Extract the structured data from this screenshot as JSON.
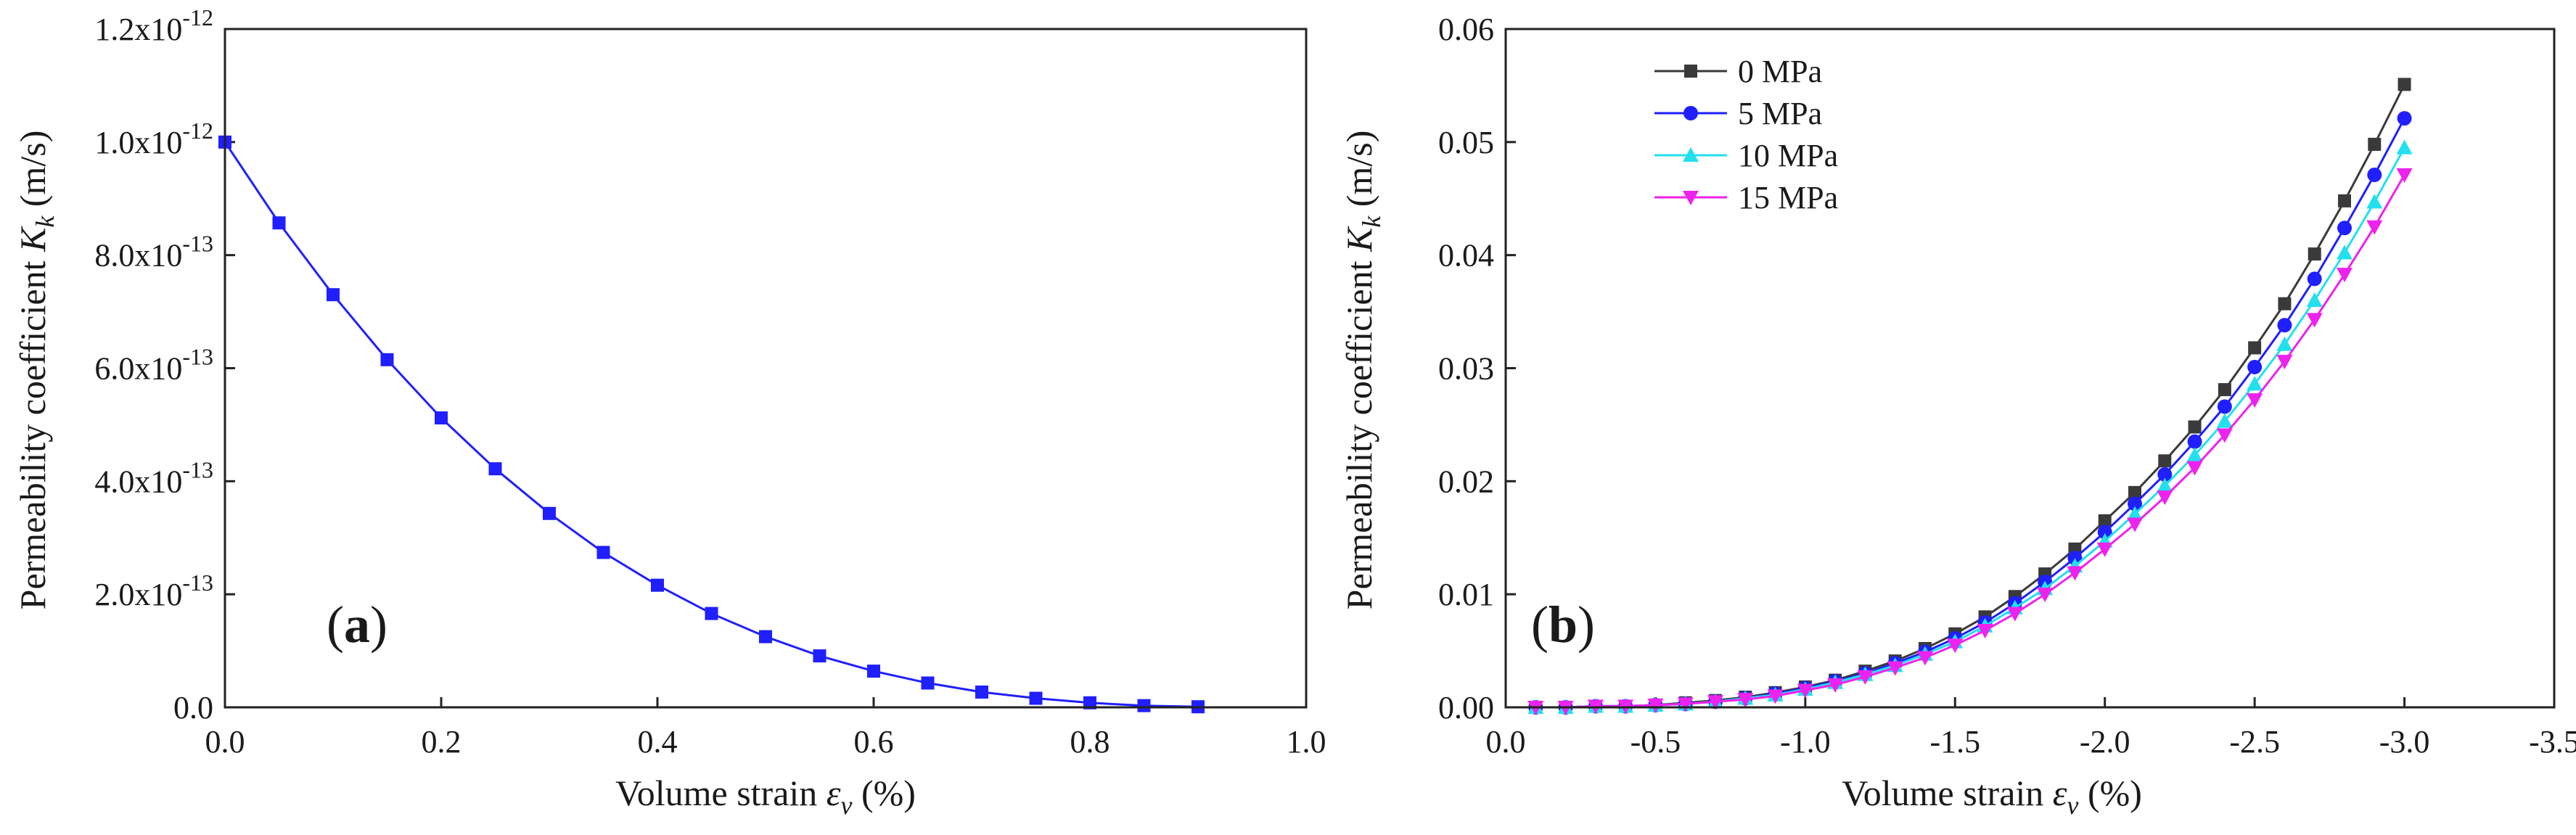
{
  "chart_data": [
    {
      "id": "a",
      "type": "line",
      "panel_label": "a",
      "xlabel": "Volume strain",
      "xsymbol": "ε",
      "xsubscript": "v",
      "xunit": "(%)",
      "ylabel": "Permeability coefficient",
      "ysymbol": "K",
      "ysubscript": "k",
      "yunit": "(m/s)",
      "xlim": [
        0.0,
        1.0
      ],
      "ylim": [
        0.0,
        1.2e-12
      ],
      "xticks": [
        {
          "value": 0.0,
          "label": "0.0"
        },
        {
          "value": 0.2,
          "label": "0.2"
        },
        {
          "value": 0.4,
          "label": "0.4"
        },
        {
          "value": 0.6,
          "label": "0.6"
        },
        {
          "value": 0.8,
          "label": "0.8"
        },
        {
          "value": 1.0,
          "label": "1.0"
        }
      ],
      "yticks": [
        {
          "value": 0.0,
          "label": "0.0"
        },
        {
          "value": 2e-13,
          "mant": "2.0x10",
          "exp": "-13"
        },
        {
          "value": 4e-13,
          "mant": "4.0x10",
          "exp": "-13"
        },
        {
          "value": 6e-13,
          "mant": "6.0x10",
          "exp": "-13"
        },
        {
          "value": 8e-13,
          "mant": "8.0x10",
          "exp": "-13"
        },
        {
          "value": 1e-12,
          "mant": "1.0x10",
          "exp": "-12"
        },
        {
          "value": 1.2e-12,
          "mant": "1.2x10",
          "exp": "-12"
        }
      ],
      "series": [
        {
          "name": "Kk",
          "color": "#1f1fff",
          "marker": "square",
          "x": [
            0.0,
            0.05,
            0.1,
            0.15,
            0.2,
            0.25,
            0.3,
            0.35,
            0.4,
            0.45,
            0.5,
            0.55,
            0.6,
            0.65,
            0.7,
            0.75,
            0.8,
            0.85,
            0.9
          ],
          "y": [
            1e-12,
            8.57e-13,
            7.3e-13,
            6.15e-13,
            5.12e-13,
            4.22e-13,
            3.43e-13,
            2.74e-13,
            2.16e-13,
            1.66e-13,
            1.25e-13,
            9.1e-14,
            6.4e-14,
            4.3e-14,
            2.7e-14,
            1.6e-14,
            8e-15,
            3e-15,
            1e-15
          ]
        }
      ]
    },
    {
      "id": "b",
      "type": "line",
      "panel_label": "b",
      "xlabel": "Volume strain",
      "xsymbol": "ε",
      "xsubscript": "v",
      "xunit": "(%)",
      "ylabel": "Permeability coefficient",
      "ysymbol": "K",
      "ysubscript": "k",
      "yunit": "(m/s)",
      "xlim": [
        0.0,
        -3.5
      ],
      "ylim": [
        0.0,
        0.06
      ],
      "xticks": [
        {
          "value": 0.0,
          "label": "0.0"
        },
        {
          "value": -0.5,
          "label": "-0.5"
        },
        {
          "value": -1.0,
          "label": "-1.0"
        },
        {
          "value": -1.5,
          "label": "-1.5"
        },
        {
          "value": -2.0,
          "label": "-2.0"
        },
        {
          "value": -2.5,
          "label": "-2.5"
        },
        {
          "value": -3.0,
          "label": "-3.0"
        },
        {
          "value": -3.5,
          "label": "-3.5"
        }
      ],
      "yticks": [
        {
          "value": 0.0,
          "label": "0.00"
        },
        {
          "value": 0.01,
          "label": "0.01"
        },
        {
          "value": 0.02,
          "label": "0.02"
        },
        {
          "value": 0.03,
          "label": "0.03"
        },
        {
          "value": 0.04,
          "label": "0.04"
        },
        {
          "value": 0.05,
          "label": "0.05"
        },
        {
          "value": 0.06,
          "label": "0.06"
        }
      ],
      "legend_position": "top-left",
      "x": [
        -0.1,
        -0.2,
        -0.3,
        -0.4,
        -0.5,
        -0.6,
        -0.7,
        -0.8,
        -0.9,
        -1.0,
        -1.1,
        -1.2,
        -1.3,
        -1.4,
        -1.5,
        -1.6,
        -1.7,
        -1.8,
        -1.9,
        -2.0,
        -2.1,
        -2.2,
        -2.3,
        -2.4,
        -2.5,
        -2.6,
        -2.7,
        -2.8,
        -2.9,
        -3.0
      ],
      "series": [
        {
          "name": "0 MPa",
          "color": "#3a3a3a",
          "marker": "square",
          "y": [
            0.0,
            0.0,
            0.0001,
            0.0001,
            0.0002,
            0.0004,
            0.0006,
            0.0009,
            0.0013,
            0.0018,
            0.0024,
            0.0032,
            0.0041,
            0.0052,
            0.0065,
            0.008,
            0.0098,
            0.0118,
            0.014,
            0.0165,
            0.019,
            0.0218,
            0.0248,
            0.0281,
            0.0318,
            0.0357,
            0.0401,
            0.0448,
            0.0498,
            0.0551
          ]
        },
        {
          "name": "5 MPa",
          "color": "#1f1fff",
          "marker": "circle",
          "y": [
            0.0,
            0.0,
            0.0001,
            0.0001,
            0.0002,
            0.0003,
            0.0005,
            0.0008,
            0.0012,
            0.0017,
            0.0023,
            0.003,
            0.0039,
            0.0049,
            0.0061,
            0.0075,
            0.0092,
            0.0111,
            0.0132,
            0.0155,
            0.018,
            0.0206,
            0.0235,
            0.0266,
            0.0301,
            0.0338,
            0.0379,
            0.0424,
            0.0471,
            0.0521
          ]
        },
        {
          "name": "10 MPa",
          "color": "#22e0ee",
          "marker": "triangle-up",
          "y": [
            0.0,
            0.0,
            0.0001,
            0.0001,
            0.0002,
            0.0003,
            0.0005,
            0.0008,
            0.0011,
            0.0016,
            0.0022,
            0.0029,
            0.0037,
            0.0047,
            0.0058,
            0.0072,
            0.0088,
            0.0105,
            0.0125,
            0.0147,
            0.0171,
            0.0196,
            0.0223,
            0.0253,
            0.0286,
            0.0321,
            0.036,
            0.0402,
            0.0447,
            0.0495
          ]
        },
        {
          "name": "15 MPa",
          "color": "#ee22ee",
          "marker": "triangle-down",
          "y": [
            0.0,
            0.0,
            0.0001,
            0.0001,
            0.0002,
            0.0003,
            0.0005,
            0.0007,
            0.001,
            0.0015,
            0.002,
            0.0027,
            0.0035,
            0.0044,
            0.0055,
            0.0068,
            0.0083,
            0.01,
            0.0119,
            0.014,
            0.0162,
            0.0186,
            0.0212,
            0.0241,
            0.0272,
            0.0306,
            0.0343,
            0.0383,
            0.0425,
            0.0471
          ]
        }
      ]
    }
  ]
}
